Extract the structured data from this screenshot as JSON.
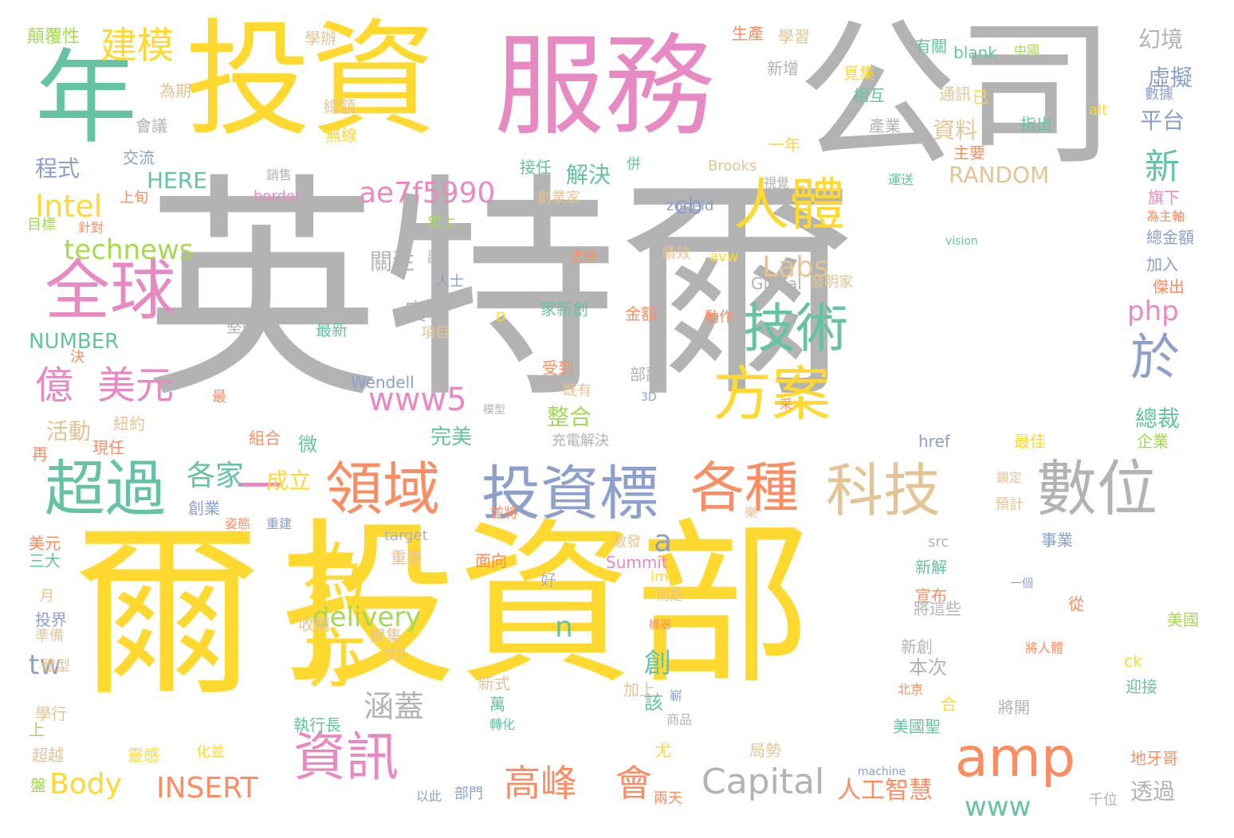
{
  "palette": {
    "gray": "#b3b3b3",
    "yellow": "#ffd92f",
    "pink": "#e78ac3",
    "green": "#66c2a5",
    "orange": "#fc8d62",
    "blue": "#8da0cb",
    "lime": "#a6d854",
    "tan": "#e5c494"
  },
  "words": [
    {
      "text": "英特爾",
      "color": "gray"
    },
    {
      "text": "爾",
      "color": "yellow"
    },
    {
      "text": "投資部",
      "color": "yellow"
    },
    {
      "text": "公司",
      "color": "gray"
    },
    {
      "text": "投資",
      "color": "yellow"
    },
    {
      "text": "服務",
      "color": "pink"
    },
    {
      "text": "年",
      "color": "green"
    },
    {
      "text": "全球",
      "color": "pink"
    },
    {
      "text": "領域",
      "color": "orange"
    },
    {
      "text": "投資標",
      "color": "blue"
    },
    {
      "text": "各種",
      "color": "orange"
    },
    {
      "text": "科技",
      "color": "tan"
    },
    {
      "text": "數位",
      "color": "gray"
    },
    {
      "text": "超過",
      "color": "green"
    },
    {
      "text": "技術",
      "color": "green"
    },
    {
      "text": "方案",
      "color": "yellow"
    },
    {
      "text": "人體",
      "color": "yellow"
    },
    {
      "text": "資訊",
      "color": "pink"
    },
    {
      "text": "amp",
      "color": "orange"
    },
    {
      "text": "為",
      "color": "yellow"
    },
    {
      "text": "亦",
      "color": "yellow"
    },
    {
      "text": "一",
      "color": "pink"
    },
    {
      "text": "於",
      "color": "blue"
    },
    {
      "text": "億",
      "color": "pink"
    },
    {
      "text": "美元",
      "color": "pink"
    },
    {
      "text": "建模",
      "color": "yellow"
    },
    {
      "text": "高峰",
      "color": "orange"
    },
    {
      "text": "會",
      "color": "orange"
    },
    {
      "text": "Capital",
      "color": "gray"
    },
    {
      "text": "www5",
      "color": "pink"
    },
    {
      "text": "ae7f5990",
      "color": "pink"
    },
    {
      "text": "Labs",
      "color": "tan"
    },
    {
      "text": "delivery",
      "color": "lime"
    },
    {
      "text": "technews",
      "color": "lime"
    },
    {
      "text": "Intel",
      "color": "yellow"
    },
    {
      "text": "各家",
      "color": "green"
    },
    {
      "text": "成立",
      "color": "yellow"
    },
    {
      "text": "涵蓋",
      "color": "gray"
    },
    {
      "text": "Body",
      "color": "yellow"
    },
    {
      "text": "INSERT",
      "color": "orange"
    },
    {
      "text": "人工智慧",
      "color": "orange"
    },
    {
      "text": "www",
      "color": "green"
    },
    {
      "text": "php",
      "color": "pink"
    },
    {
      "text": "cb",
      "color": "blue"
    },
    {
      "text": "tw",
      "color": "blue"
    },
    {
      "text": "新",
      "color": "green"
    },
    {
      "text": "a",
      "color": "blue"
    },
    {
      "text": "n",
      "color": "green"
    },
    {
      "text": "創",
      "color": "green"
    },
    {
      "text": "平台",
      "color": "blue"
    },
    {
      "text": "虛擬",
      "color": "blue"
    },
    {
      "text": "幻境",
      "color": "gray"
    },
    {
      "text": "總裁",
      "color": "green"
    },
    {
      "text": "透過",
      "color": "gray"
    },
    {
      "text": "RANDOM",
      "color": "tan"
    },
    {
      "text": "NUMBER",
      "color": "green"
    },
    {
      "text": "HERE",
      "color": "green"
    },
    {
      "text": "程式",
      "color": "blue"
    },
    {
      "text": "解決",
      "color": "green"
    },
    {
      "text": "資料",
      "color": "tan"
    },
    {
      "text": "關注",
      "color": "gray"
    },
    {
      "text": "實境",
      "color": "gray"
    },
    {
      "text": "整合",
      "color": "lime"
    },
    {
      "text": "活動",
      "color": "tan"
    },
    {
      "text": "完美",
      "color": "green"
    },
    {
      "text": "本次",
      "color": "gray"
    },
    {
      "text": "該",
      "color": "green"
    },
    {
      "text": "微",
      "color": "green"
    },
    {
      "text": "Wendell",
      "color": "blue"
    },
    {
      "text": "顛覆性",
      "color": "lime"
    },
    {
      "text": "學辦",
      "color": "tan"
    },
    {
      "text": "生產",
      "color": "orange"
    },
    {
      "text": "學習",
      "color": "tan"
    },
    {
      "text": "有關",
      "color": "green"
    },
    {
      "text": "blank",
      "color": "green"
    },
    {
      "text": "中國",
      "color": "lime"
    },
    {
      "text": "為期",
      "color": "tan"
    },
    {
      "text": "總額",
      "color": "tan"
    },
    {
      "text": "會議",
      "color": "gray"
    },
    {
      "text": "無線",
      "color": "yellow"
    },
    {
      "text": "交流",
      "color": "blue"
    },
    {
      "text": "覓集",
      "color": "yellow"
    },
    {
      "text": "相互",
      "color": "green"
    },
    {
      "text": "通訊",
      "color": "tan"
    },
    {
      "text": "新增",
      "color": "gray"
    },
    {
      "text": "已",
      "color": "yellow"
    },
    {
      "text": "產業",
      "color": "gray"
    },
    {
      "text": "指出",
      "color": "green"
    },
    {
      "text": "數據",
      "color": "blue"
    },
    {
      "text": "alt",
      "color": "yellow"
    },
    {
      "text": "一年",
      "color": "yellow"
    },
    {
      "text": "主要",
      "color": "orange"
    },
    {
      "text": "接任",
      "color": "green"
    },
    {
      "text": "併",
      "color": "green"
    },
    {
      "text": "Brooks",
      "color": "tan"
    },
    {
      "text": "運送",
      "color": "green"
    },
    {
      "text": "旗下",
      "color": "pink"
    },
    {
      "text": "為主軸",
      "color": "orange"
    },
    {
      "text": "總金額",
      "color": "blue"
    },
    {
      "text": "加入",
      "color": "blue"
    },
    {
      "text": "傑出",
      "color": "orange"
    },
    {
      "text": "上旬",
      "color": "orange"
    },
    {
      "text": "銷售",
      "color": "gray"
    },
    {
      "text": "border",
      "color": "pink"
    },
    {
      "text": "視覺",
      "color": "gray"
    },
    {
      "text": "創業家",
      "color": "tan"
    },
    {
      "text": "zoneid",
      "color": "blue"
    },
    {
      "text": "目標",
      "color": "lime"
    },
    {
      "text": "針對",
      "color": "orange"
    },
    {
      "text": "史上",
      "color": "lime"
    },
    {
      "text": "vision",
      "color": "green"
    },
    {
      "text": "副",
      "color": "gray"
    },
    {
      "text": "這些",
      "color": "orange"
    },
    {
      "text": "績效",
      "color": "tan"
    },
    {
      "text": "avw",
      "color": "yellow"
    },
    {
      "text": "人士",
      "color": "blue"
    },
    {
      "text": "Global",
      "color": "gray"
    },
    {
      "text": "發明家",
      "color": "tan"
    },
    {
      "text": "家新創",
      "color": "green"
    },
    {
      "text": "金額",
      "color": "orange"
    },
    {
      "text": "D",
      "color": "yellow"
    },
    {
      "text": "動作",
      "color": "orange"
    },
    {
      "text": "堅強",
      "color": "gray"
    },
    {
      "text": "最新",
      "color": "green"
    },
    {
      "text": "項目",
      "color": "tan"
    },
    {
      "text": "決",
      "color": "orange"
    },
    {
      "text": "受到",
      "color": "orange"
    },
    {
      "text": "部副",
      "color": "gray"
    },
    {
      "text": "最",
      "color": "orange"
    },
    {
      "text": "既有",
      "color": "tan"
    },
    {
      "text": "模型",
      "color": "gray"
    },
    {
      "text": "3D",
      "color": "blue"
    },
    {
      "text": "采",
      "color": "orange"
    },
    {
      "text": "紐約",
      "color": "tan"
    },
    {
      "text": "充電解決",
      "color": "gray"
    },
    {
      "text": "現任",
      "color": "orange"
    },
    {
      "text": "組合",
      "color": "orange"
    },
    {
      "text": "再",
      "color": "orange"
    },
    {
      "text": "href",
      "color": "blue"
    },
    {
      "text": "最佳",
      "color": "yellow"
    },
    {
      "text": "企業",
      "color": "lime"
    },
    {
      "text": "創業",
      "color": "blue"
    },
    {
      "text": "姿態",
      "color": "orange"
    },
    {
      "text": "重建",
      "color": "blue"
    },
    {
      "text": "樂",
      "color": "tan"
    },
    {
      "text": "鎖定",
      "color": "tan"
    },
    {
      "text": "預計",
      "color": "tan"
    },
    {
      "text": "並將",
      "color": "orange"
    },
    {
      "text": "美元",
      "color": "orange"
    },
    {
      "text": "target",
      "color": "gray"
    },
    {
      "text": "三大",
      "color": "green"
    },
    {
      "text": "重要",
      "color": "tan"
    },
    {
      "text": "激發",
      "color": "tan"
    },
    {
      "text": "Summit",
      "color": "pink"
    },
    {
      "text": "src",
      "color": "gray"
    },
    {
      "text": "事業",
      "color": "blue"
    },
    {
      "text": "面向",
      "color": "orange"
    },
    {
      "text": "img",
      "color": "yellow"
    },
    {
      "text": "新解",
      "color": "green"
    },
    {
      "text": "好",
      "color": "gray"
    },
    {
      "text": "則是",
      "color": "tan"
    },
    {
      "text": "宣布",
      "color": "orange"
    },
    {
      "text": "一個",
      "color": "blue"
    },
    {
      "text": "月",
      "color": "tan"
    },
    {
      "text": "將這些",
      "color": "gray"
    },
    {
      "text": "從",
      "color": "orange"
    },
    {
      "text": "投界",
      "color": "blue"
    },
    {
      "text": "收購",
      "color": "tan"
    },
    {
      "text": "聚集",
      "color": "tan"
    },
    {
      "text": "機器",
      "color": "orange"
    },
    {
      "text": "美國",
      "color": "lime"
    },
    {
      "text": "準備",
      "color": "tan"
    },
    {
      "text": "設計",
      "color": "tan"
    },
    {
      "text": "新創",
      "color": "gray"
    },
    {
      "text": "將人體",
      "color": "orange"
    },
    {
      "text": "ck",
      "color": "yellow"
    },
    {
      "text": "體型",
      "color": "tan"
    },
    {
      "text": "新式",
      "color": "tan"
    },
    {
      "text": "加上",
      "color": "tan"
    },
    {
      "text": "嶄",
      "color": "blue"
    },
    {
      "text": "北京",
      "color": "orange"
    },
    {
      "text": "迎接",
      "color": "green"
    },
    {
      "text": "萬",
      "color": "green"
    },
    {
      "text": "學行",
      "color": "tan"
    },
    {
      "text": "合",
      "color": "yellow"
    },
    {
      "text": "將開",
      "color": "gray"
    },
    {
      "text": "商品",
      "color": "gray"
    },
    {
      "text": "轉化",
      "color": "green"
    },
    {
      "text": "上",
      "color": "lime"
    },
    {
      "text": "執行長",
      "color": "green"
    },
    {
      "text": "美國聖",
      "color": "green"
    },
    {
      "text": "靈感",
      "color": "yellow"
    },
    {
      "text": "化並",
      "color": "yellow"
    },
    {
      "text": "局勢",
      "color": "tan"
    },
    {
      "text": "超越",
      "color": "tan"
    },
    {
      "text": "尤",
      "color": "yellow"
    },
    {
      "text": "machine",
      "color": "blue"
    },
    {
      "text": "地牙哥",
      "color": "orange"
    },
    {
      "text": "盤",
      "color": "lime"
    },
    {
      "text": "以此",
      "color": "blue"
    },
    {
      "text": "部門",
      "color": "blue"
    },
    {
      "text": "兩天",
      "color": "orange"
    },
    {
      "text": "千位",
      "color": "gray"
    }
  ]
}
